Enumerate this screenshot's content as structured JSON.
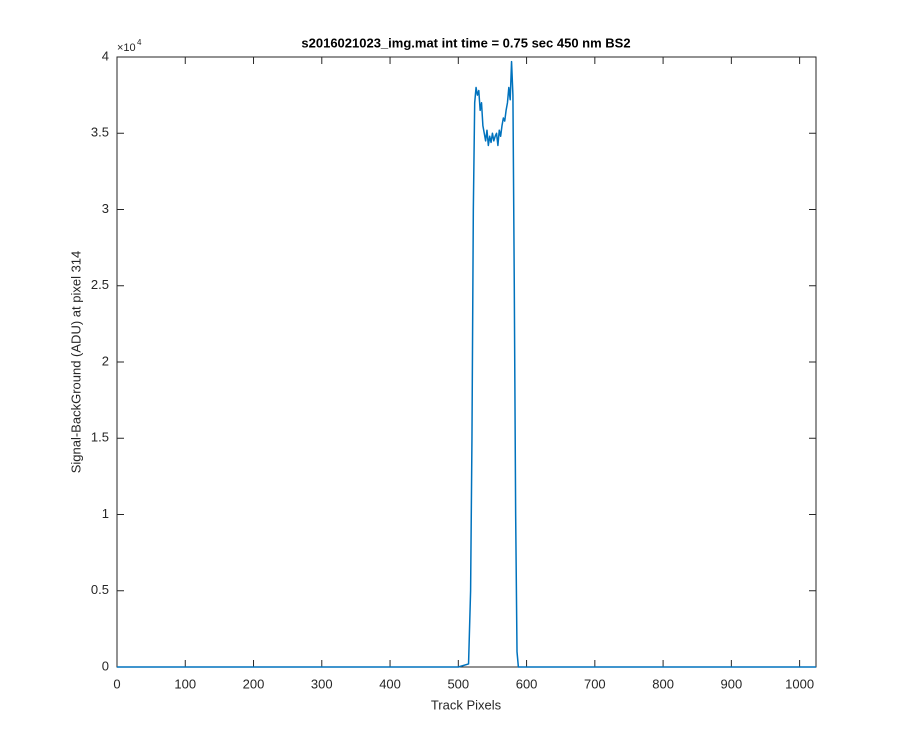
{
  "chart_data": {
    "type": "line",
    "title": "s2016021023_img.mat int time = 0.75 sec  450 nm BS2",
    "x_label": "Track Pixels",
    "y_label": "Signal-BackGround (ADU) at pixel 314",
    "y_multiplier": "×10",
    "y_multiplier_exponent": "4",
    "xlim": [
      0,
      1024
    ],
    "xticks": [
      0,
      100,
      200,
      300,
      400,
      500,
      600,
      700,
      800,
      900,
      1000
    ],
    "ylim": [
      0,
      4
    ],
    "yticks": [
      0,
      0.5,
      1,
      1.5,
      2,
      2.5,
      3,
      3.5,
      4
    ],
    "grid": false,
    "series": [
      {
        "color": "#0072bd",
        "x": [
          0,
          100,
          200,
          300,
          400,
          500,
          515,
          518,
          520,
          522,
          524,
          526,
          528,
          530,
          532,
          534,
          536,
          538,
          540,
          542,
          544,
          546,
          548,
          550,
          552,
          554,
          556,
          558,
          560,
          562,
          564,
          566,
          568,
          570,
          572,
          574,
          576,
          578,
          580,
          582,
          584,
          586,
          588,
          600,
          700,
          800,
          900,
          1000,
          1024
        ],
        "values": [
          0,
          0,
          0,
          0,
          0,
          0,
          0.02,
          0.5,
          1.5,
          3.0,
          3.7,
          3.8,
          3.75,
          3.78,
          3.65,
          3.7,
          3.55,
          3.5,
          3.45,
          3.52,
          3.42,
          3.48,
          3.44,
          3.5,
          3.45,
          3.48,
          3.5,
          3.42,
          3.52,
          3.48,
          3.55,
          3.6,
          3.58,
          3.65,
          3.7,
          3.8,
          3.72,
          3.97,
          3.75,
          2.5,
          1.0,
          0.1,
          0,
          0,
          0,
          0,
          0,
          0,
          0
        ]
      }
    ]
  }
}
